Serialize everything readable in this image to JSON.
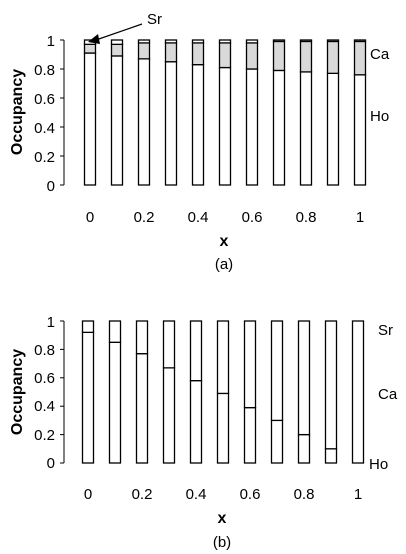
{
  "chart_data": [
    {
      "type": "bar",
      "stacked": true,
      "panel_label": "(a)",
      "xlabel": "x",
      "ylabel": "Occupancy",
      "ylim": [
        0,
        1
      ],
      "x_ticks": [
        "0",
        "0.2",
        "0.4",
        "0.6",
        "0.8",
        "1"
      ],
      "y_ticks": [
        "0",
        "0.2",
        "0.4",
        "0.6",
        "0.8",
        "1"
      ],
      "categories": [
        0,
        0.1,
        0.2,
        0.3,
        0.4,
        0.5,
        0.6,
        0.7,
        0.8,
        0.9,
        1.0
      ],
      "series": [
        {
          "name": "Ho",
          "values": [
            0.91,
            0.89,
            0.87,
            0.85,
            0.83,
            0.81,
            0.8,
            0.79,
            0.78,
            0.77,
            0.76
          ]
        },
        {
          "name": "Ca",
          "values": [
            0.06,
            0.08,
            0.11,
            0.13,
            0.15,
            0.17,
            0.18,
            0.2,
            0.21,
            0.22,
            0.23
          ]
        },
        {
          "name": "Sr",
          "values": [
            0.03,
            0.03,
            0.02,
            0.02,
            0.02,
            0.02,
            0.02,
            0.01,
            0.01,
            0.01,
            0.01
          ]
        }
      ],
      "annotation": "Sr",
      "colors": {
        "Ho": "#ffffff",
        "Ca": "#d9d9d9",
        "Sr": "#ffffff"
      }
    },
    {
      "type": "bar",
      "stacked": true,
      "panel_label": "(b)",
      "xlabel": "x",
      "ylabel": "Occupancy",
      "ylim": [
        0,
        1
      ],
      "x_ticks": [
        "0",
        "0.2",
        "0.4",
        "0.6",
        "0.8",
        "1"
      ],
      "y_ticks": [
        "0",
        "0.2",
        "0.4",
        "0.6",
        "0.8",
        "1"
      ],
      "categories": [
        0,
        0.1,
        0.2,
        0.3,
        0.4,
        0.5,
        0.6,
        0.7,
        0.8,
        0.9,
        1.0
      ],
      "series": [
        {
          "name": "Ho",
          "values": [
            0.0,
            0.0,
            0.0,
            0.0,
            0.0,
            0.0,
            0.0,
            0.0,
            0.0,
            0.0,
            0.0
          ]
        },
        {
          "name": "Ca",
          "values": [
            0.92,
            0.85,
            0.77,
            0.67,
            0.58,
            0.49,
            0.39,
            0.3,
            0.2,
            0.1,
            0.0
          ]
        },
        {
          "name": "Sr",
          "values": [
            0.08,
            0.15,
            0.23,
            0.33,
            0.42,
            0.51,
            0.61,
            0.7,
            0.8,
            0.9,
            1.0
          ]
        }
      ],
      "colors": {
        "Ho": "#ffffff",
        "Ca": "#ffffff",
        "Sr": "#ffffff"
      }
    }
  ]
}
